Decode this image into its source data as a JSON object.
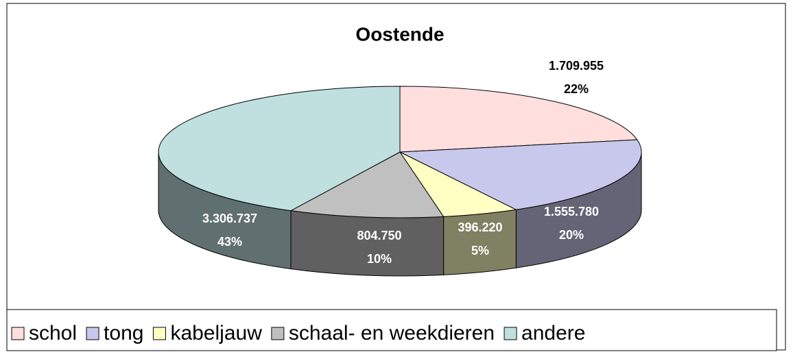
{
  "chart_data": {
    "type": "pie",
    "title": "Oostende",
    "categories": [
      "schol",
      "tong",
      "kabeljauw",
      "schaal- en weekdieren",
      "andere"
    ],
    "values": [
      1709955,
      1555780,
      396220,
      804750,
      3306737
    ],
    "value_labels": [
      "1.709.955",
      "1.555.780",
      "396.220",
      "804.750",
      "3.306.737"
    ],
    "percent_labels": [
      "22%",
      "20%",
      "5%",
      "10%",
      "43%"
    ],
    "colors": [
      "#ffdede",
      "#c8c8ec",
      "#ffffc4",
      "#c0c0c0",
      "#c0e0e0"
    ],
    "legend": "bottom"
  }
}
